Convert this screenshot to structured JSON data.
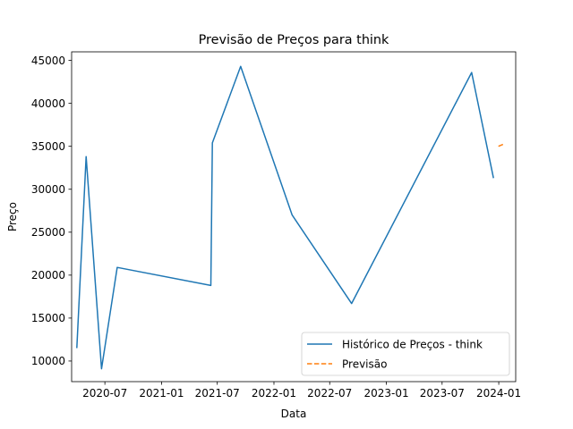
{
  "chart_data": {
    "type": "line",
    "title": "Previsão de Preços para think",
    "xlabel": "Data",
    "ylabel": "Preço",
    "xlim": [
      "2020-03-15",
      "2024-02-25"
    ],
    "ylim": [
      7600,
      46000
    ],
    "x_ticks": [
      "2020-07-01",
      "2021-01-01",
      "2021-07-01",
      "2022-01-01",
      "2022-07-01",
      "2023-01-01",
      "2023-07-01",
      "2024-01-01"
    ],
    "x_tick_labels": [
      "2020-07",
      "2021-01",
      "2021-07",
      "2022-01",
      "2022-07",
      "2023-01",
      "2023-07",
      "2024-01"
    ],
    "y_ticks": [
      10000,
      15000,
      20000,
      25000,
      30000,
      35000,
      40000,
      45000
    ],
    "y_tick_labels": [
      "10000",
      "15000",
      "20000",
      "25000",
      "30000",
      "35000",
      "40000",
      "45000"
    ],
    "grid": false,
    "legend": "lower right",
    "series": [
      {
        "name": "Histórico de Preços - think",
        "style": "solid",
        "color": "#1f77b4",
        "points": [
          {
            "x": "2020-04-01",
            "y": 11500
          },
          {
            "x": "2020-05-01",
            "y": 33800
          },
          {
            "x": "2020-06-20",
            "y": 9100
          },
          {
            "x": "2020-08-10",
            "y": 20900
          },
          {
            "x": "2021-06-10",
            "y": 18800
          },
          {
            "x": "2021-06-15",
            "y": 35400
          },
          {
            "x": "2021-09-15",
            "y": 44300
          },
          {
            "x": "2022-03-01",
            "y": 27000
          },
          {
            "x": "2022-09-10",
            "y": 16700
          },
          {
            "x": "2023-10-05",
            "y": 43600
          },
          {
            "x": "2023-12-15",
            "y": 31300
          }
        ]
      },
      {
        "name": "Previsão",
        "style": "dashed",
        "color": "#ff7f0e",
        "points": [
          {
            "x": "2023-12-31",
            "y": 35000
          },
          {
            "x": "2024-01-20",
            "y": 35300
          }
        ]
      }
    ]
  }
}
